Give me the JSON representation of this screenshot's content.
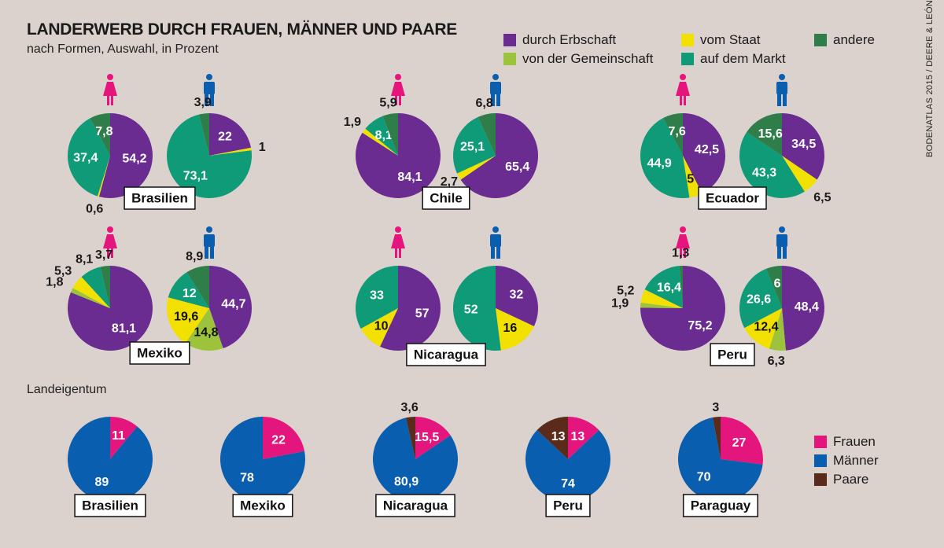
{
  "title": "LANDERWERB DURCH FRAUEN, MÄNNER UND PAARE",
  "subtitle": "nach Formen, Auswahl, in Prozent",
  "section2_title": "Landeigentum",
  "credit": "BODENATLAS 2015 / DEERE & LEÓN",
  "colors": {
    "erbschaft": "#6b2c91",
    "gemeinschaft": "#9cc33b",
    "staat": "#f2e000",
    "markt": "#0f9a78",
    "andere": "#2f7d48",
    "frauen": "#e5157e",
    "maenner": "#0a5eb0",
    "paare": "#5a2b1a",
    "woman_icon": "#e5157e",
    "man_icon": "#0a5eb0"
  },
  "legend_top": [
    {
      "label": "durch Erbschaft",
      "color": "#6b2c91"
    },
    {
      "label": "vom Staat",
      "color": "#f2e000"
    },
    {
      "label": "andere",
      "color": "#2f7d48"
    },
    {
      "label": "von der Gemeinschaft",
      "color": "#9cc33b"
    },
    {
      "label": "auf dem Markt",
      "color": "#0f9a78"
    }
  ],
  "legend_bottom": [
    {
      "label": "Frauen",
      "color": "#e5157e"
    },
    {
      "label": "Männer",
      "color": "#0a5eb0"
    },
    {
      "label": "Paare",
      "color": "#5a2b1a"
    }
  ],
  "chart_data": [
    {
      "type": "pie",
      "title": "LANDERWERB DURCH FRAUEN, MÄNNER UND PAARE",
      "subtitle": "nach Formen, Auswahl, in Prozent",
      "categories": [
        "durch Erbschaft",
        "von der Gemeinschaft",
        "vom Staat",
        "auf dem Markt",
        "andere"
      ],
      "countries": [
        {
          "name": "Brasilien",
          "frauen": [
            {
              "cat": "erbschaft",
              "value": 54.2,
              "label": "54,2"
            },
            {
              "cat": "staat",
              "value": 0.6,
              "label": "0,6"
            },
            {
              "cat": "markt",
              "value": 37.4,
              "label": "37,4"
            },
            {
              "cat": "andere",
              "value": 7.8,
              "label": "7,8"
            }
          ],
          "maenner": [
            {
              "cat": "erbschaft",
              "value": 22,
              "label": "22"
            },
            {
              "cat": "staat",
              "value": 1,
              "label": "1"
            },
            {
              "cat": "markt",
              "value": 73.1,
              "label": "73,1"
            },
            {
              "cat": "andere",
              "value": 3.9,
              "label": "3,9"
            }
          ]
        },
        {
          "name": "Chile",
          "frauen": [
            {
              "cat": "erbschaft",
              "value": 84.1,
              "label": "84,1"
            },
            {
              "cat": "staat",
              "value": 1.9,
              "label": "1,9"
            },
            {
              "cat": "markt",
              "value": 8.1,
              "label": "8,1"
            },
            {
              "cat": "andere",
              "value": 5.9,
              "label": "5,9"
            }
          ],
          "maenner": [
            {
              "cat": "erbschaft",
              "value": 65.4,
              "label": "65,4"
            },
            {
              "cat": "staat",
              "value": 2.7,
              "label": "2,7"
            },
            {
              "cat": "markt",
              "value": 25.1,
              "label": "25,1"
            },
            {
              "cat": "andere",
              "value": 6.8,
              "label": "6,8"
            }
          ]
        },
        {
          "name": "Ecuador",
          "frauen": [
            {
              "cat": "erbschaft",
              "value": 42.5,
              "label": "42,5"
            },
            {
              "cat": "staat",
              "value": 5,
              "label": "5"
            },
            {
              "cat": "markt",
              "value": 44.9,
              "label": "44,9"
            },
            {
              "cat": "andere",
              "value": 7.6,
              "label": "7,6"
            }
          ],
          "maenner": [
            {
              "cat": "erbschaft",
              "value": 34.5,
              "label": "34,5"
            },
            {
              "cat": "staat",
              "value": 6.5,
              "label": "6,5"
            },
            {
              "cat": "markt",
              "value": 43.3,
              "label": "43,3"
            },
            {
              "cat": "andere",
              "value": 15.6,
              "label": "15,6"
            }
          ]
        },
        {
          "name": "Mexiko",
          "frauen": [
            {
              "cat": "erbschaft",
              "value": 81.1,
              "label": "81,1"
            },
            {
              "cat": "gemeinschaft",
              "value": 1.8,
              "label": "1,8"
            },
            {
              "cat": "staat",
              "value": 5.3,
              "label": "5,3"
            },
            {
              "cat": "markt",
              "value": 8.1,
              "label": "8,1"
            },
            {
              "cat": "andere",
              "value": 3.7,
              "label": "3,7"
            }
          ],
          "maenner": [
            {
              "cat": "erbschaft",
              "value": 44.7,
              "label": "44,7"
            },
            {
              "cat": "gemeinschaft",
              "value": 14.8,
              "label": "14,8"
            },
            {
              "cat": "staat",
              "value": 19.6,
              "label": "19,6"
            },
            {
              "cat": "markt",
              "value": 12,
              "label": "12"
            },
            {
              "cat": "andere",
              "value": 8.9,
              "label": "8,9"
            }
          ]
        },
        {
          "name": "Nicaragua",
          "frauen": [
            {
              "cat": "erbschaft",
              "value": 57,
              "label": "57"
            },
            {
              "cat": "staat",
              "value": 10,
              "label": "10"
            },
            {
              "cat": "markt",
              "value": 33,
              "label": "33"
            }
          ],
          "maenner": [
            {
              "cat": "erbschaft",
              "value": 32,
              "label": "32"
            },
            {
              "cat": "staat",
              "value": 16,
              "label": "16"
            },
            {
              "cat": "markt",
              "value": 52,
              "label": "52"
            }
          ]
        },
        {
          "name": "Peru",
          "frauen": [
            {
              "cat": "erbschaft",
              "value": 75.2,
              "label": "75,2"
            },
            {
              "cat": "gemeinschaft",
              "value": 1.9,
              "label": "1,9"
            },
            {
              "cat": "staat",
              "value": 5.2,
              "label": "5,2"
            },
            {
              "cat": "markt",
              "value": 16.4,
              "label": "16,4"
            },
            {
              "cat": "andere",
              "value": 1.3,
              "label": "1,3"
            }
          ],
          "maenner": [
            {
              "cat": "erbschaft",
              "value": 48.4,
              "label": "48,4"
            },
            {
              "cat": "gemeinschaft",
              "value": 6.3,
              "label": "6,3"
            },
            {
              "cat": "staat",
              "value": 12.4,
              "label": "12,4"
            },
            {
              "cat": "markt",
              "value": 26.6,
              "label": "26,6"
            },
            {
              "cat": "andere",
              "value": 6,
              "label": "6"
            }
          ]
        }
      ]
    },
    {
      "type": "pie",
      "title": "Landeigentum",
      "categories": [
        "Frauen",
        "Männer",
        "Paare"
      ],
      "countries": [
        {
          "name": "Brasilien",
          "slices": [
            {
              "cat": "frauen",
              "value": 11,
              "label": "11"
            },
            {
              "cat": "maenner",
              "value": 89,
              "label": "89"
            }
          ]
        },
        {
          "name": "Mexiko",
          "slices": [
            {
              "cat": "frauen",
              "value": 22,
              "label": "22"
            },
            {
              "cat": "maenner",
              "value": 78,
              "label": "78"
            }
          ]
        },
        {
          "name": "Nicaragua",
          "slices": [
            {
              "cat": "frauen",
              "value": 15.5,
              "label": "15,5"
            },
            {
              "cat": "maenner",
              "value": 80.9,
              "label": "80,9"
            },
            {
              "cat": "paare",
              "value": 3.6,
              "label": "3,6"
            }
          ]
        },
        {
          "name": "Peru",
          "slices": [
            {
              "cat": "frauen",
              "value": 13,
              "label": "13"
            },
            {
              "cat": "maenner",
              "value": 74,
              "label": "74"
            },
            {
              "cat": "paare",
              "value": 13,
              "label": "13"
            }
          ]
        },
        {
          "name": "Paraguay",
          "slices": [
            {
              "cat": "frauen",
              "value": 27,
              "label": "27"
            },
            {
              "cat": "maenner",
              "value": 70,
              "label": "70"
            },
            {
              "cat": "paare",
              "value": 3,
              "label": "3"
            }
          ]
        }
      ]
    }
  ]
}
